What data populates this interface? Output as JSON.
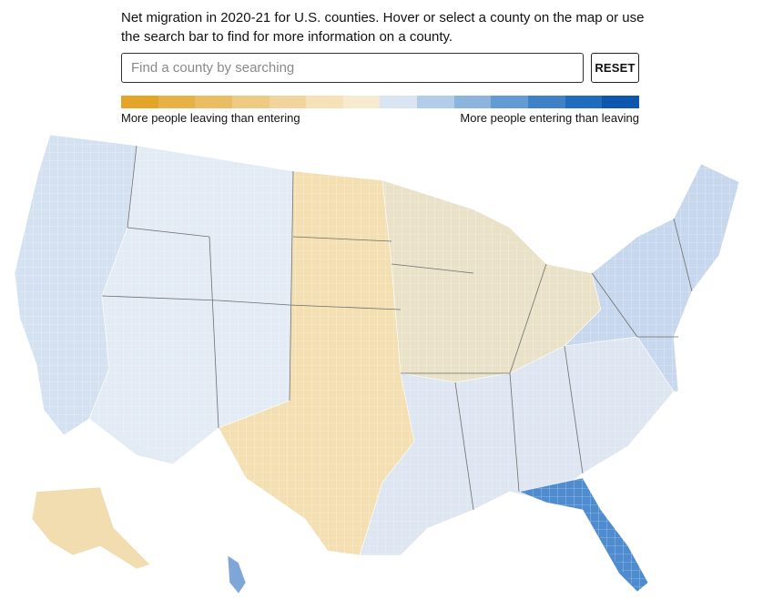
{
  "intro": {
    "line1": "Net migration in 2020-21 for U.S. counties. Hover or select a county on the map or use",
    "line2": "the search bar to find for more information on a county."
  },
  "search": {
    "placeholder": "Find a county by searching",
    "value": "",
    "reset_label": "RESET"
  },
  "legend": {
    "colors": [
      "#e3a427",
      "#e7b146",
      "#ebbd62",
      "#efca82",
      "#f2d59d",
      "#f6e1b8",
      "#f8ead0",
      "#d9e5f3",
      "#b3cde9",
      "#8db4de",
      "#659bd3",
      "#3f81c7",
      "#1f6bbc",
      "#0d55ad"
    ],
    "left_label": "More people leaving than entering",
    "right_label": "More people entering than leaving"
  },
  "map": {
    "region_colors": {
      "west_coast": "#d4e1f1",
      "mountain": "#e3ebf5",
      "plains": "#f3dfb2",
      "midwest": "#e9e2c9",
      "south": "#dde6f1",
      "east": "#c7d7ed",
      "florida": "#4f8ccf",
      "alaska": "#f2ddb1",
      "hawaii": "#7ea6d9"
    },
    "state_border": "#6e6e6e"
  }
}
